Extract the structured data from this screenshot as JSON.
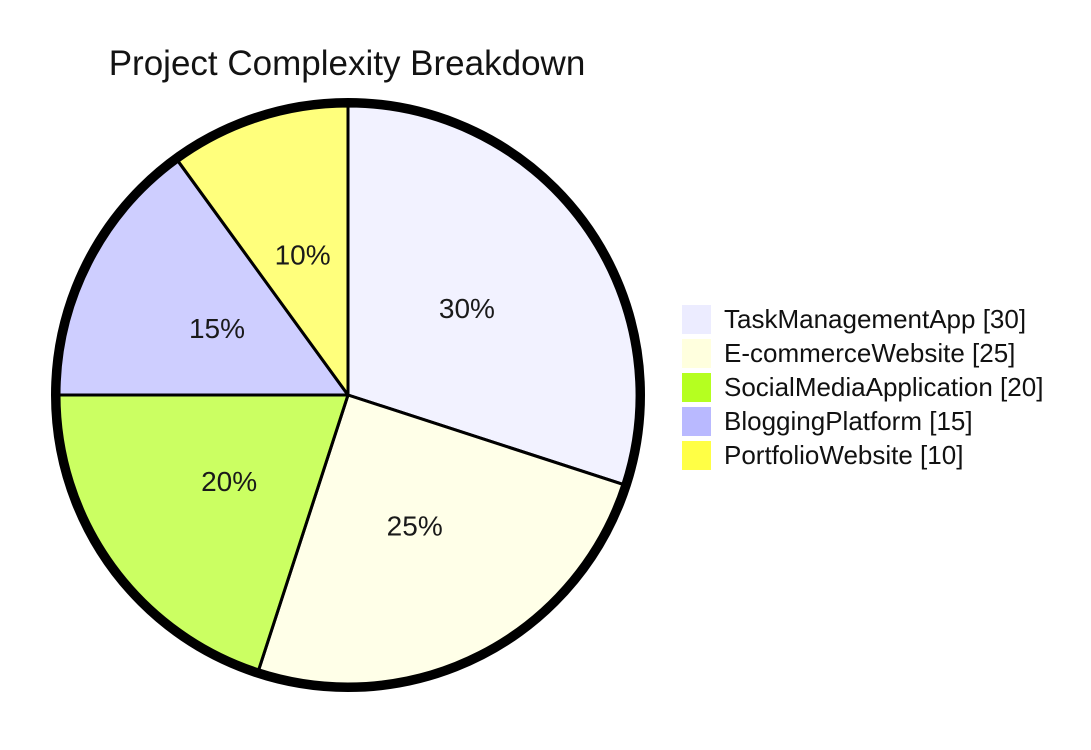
{
  "chart_data": {
    "type": "pie",
    "title": "Project Complexity Breakdown",
    "legend_position": "right",
    "label_format": "percent",
    "total": 100,
    "start_angle_deg": 0,
    "direction": "clockwise",
    "slice_fill_opacity": 0.7,
    "stroke_color": "#000000",
    "outer_ring_color": "#000000",
    "text_color": "#1a1a1a",
    "background_color": "#ffffff",
    "slices": [
      {
        "label": "TaskManagementApp",
        "value": 30,
        "percent": "30%",
        "color": "#ECECFF"
      },
      {
        "label": "E-commerceWebsite",
        "value": 25,
        "percent": "25%",
        "color": "#FFFFDE"
      },
      {
        "label": "SocialMediaApplication",
        "value": 20,
        "percent": "20%",
        "color": "#B5FF20"
      },
      {
        "label": "BloggingPlatform",
        "value": 15,
        "percent": "15%",
        "color": "#B9B9FF"
      },
      {
        "label": "PortfolioWebsite",
        "value": 10,
        "percent": "10%",
        "color": "#FFFF45"
      }
    ]
  }
}
